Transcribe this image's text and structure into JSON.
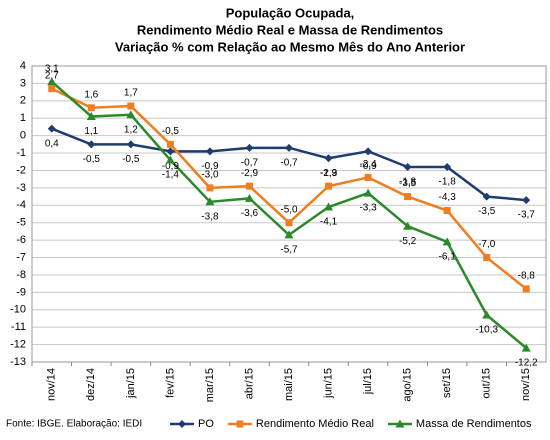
{
  "chart_data": {
    "type": "line",
    "title": [
      "População Ocupada,",
      "Rendimento Médio Real e Massa de Rendimentos",
      "Variação % com Relação ao Mesmo Mês do Ano Anterior"
    ],
    "source": "Fonte: IBGE. Elaboração: IEDI",
    "categories": [
      "nov/14",
      "dez/14",
      "jan/15",
      "fev/15",
      "mar/15",
      "abr/15",
      "mai/15",
      "jun/15",
      "jul/15",
      "ago/15",
      "set/15",
      "out/15",
      "nov/15"
    ],
    "ylim": [
      -13,
      4
    ],
    "yticks": [
      -13,
      -12,
      -11,
      -10,
      -9,
      -8,
      -7,
      -6,
      -5,
      -4,
      -3,
      -2,
      -1,
      0,
      1,
      2,
      3,
      4
    ],
    "grid": true,
    "legend": "bottom",
    "series": [
      {
        "name": "PO",
        "color": "#1f3c6e",
        "marker": "diamond",
        "label_side": "below",
        "values": [
          0.4,
          -0.5,
          -0.5,
          -0.9,
          -0.9,
          -0.7,
          -0.7,
          -1.3,
          -0.9,
          -1.8,
          -1.8,
          -3.5,
          -3.7
        ],
        "value_labels": [
          "0,4",
          "-0,5",
          "-0,5",
          "-0,9",
          "-0,9",
          "-0,7",
          "-0,7",
          "-1,3",
          "-0,9",
          "-1,8",
          "-1,8",
          "-3,5",
          "-3,7"
        ]
      },
      {
        "name": "Rendimento Médio Real",
        "color": "#f07d1e",
        "marker": "square",
        "label_side": "above",
        "values": [
          2.7,
          1.6,
          1.7,
          -0.5,
          -3.0,
          -2.9,
          -5.0,
          -2.9,
          -2.4,
          -3.5,
          -4.3,
          -7.0,
          -8.8
        ],
        "value_labels": [
          "2,7",
          "1,6",
          "1,7",
          "-0,5",
          "-3,0",
          "-2,9",
          "-5,0",
          "-2,9",
          "-2,4",
          "-3,5",
          "-4,3",
          "-7,0",
          "-8,8"
        ]
      },
      {
        "name": "Massa de Rendimentos",
        "color": "#2a8a2a",
        "marker": "triangle",
        "label_side": "below",
        "values": [
          3.1,
          1.1,
          1.2,
          -1.4,
          -3.8,
          -3.6,
          -5.7,
          -4.1,
          -3.3,
          -5.2,
          -6.1,
          -10.3,
          -12.2
        ],
        "value_labels": [
          "3,1",
          "1,1",
          "1,2",
          "-1,4",
          "-3,8",
          "-3,6",
          "-5,7",
          "-4,1",
          "-3,3",
          "-5,2",
          "-6,1",
          "-10,3",
          "-12,2"
        ]
      }
    ]
  }
}
